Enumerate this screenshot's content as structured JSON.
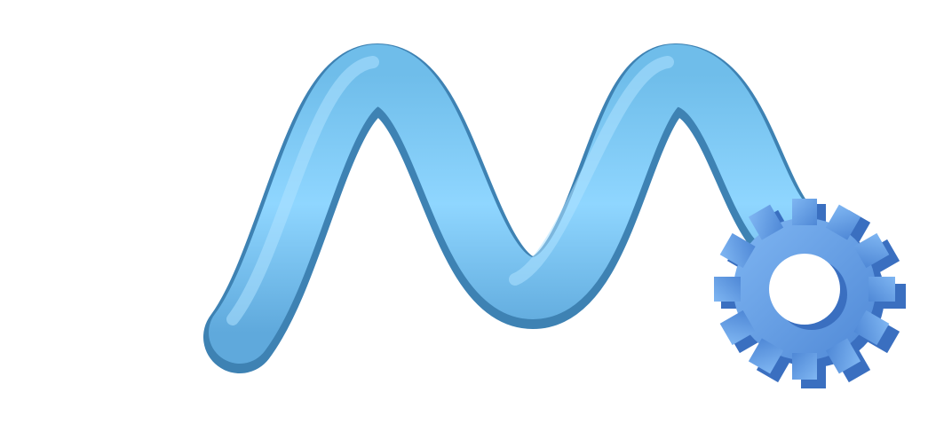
{
  "image": {
    "subject": "logo",
    "elements": [
      "wave-ribbon",
      "gear"
    ]
  },
  "colors": {
    "background": "#ffffff",
    "ribbon_light": "#8fd6ff",
    "ribbon_mid": "#6fbdea",
    "ribbon_dark": "#3e82b3",
    "gear_light": "#7fb6f2",
    "gear_mid": "#5a96e2",
    "gear_dark": "#3a6fc0"
  }
}
